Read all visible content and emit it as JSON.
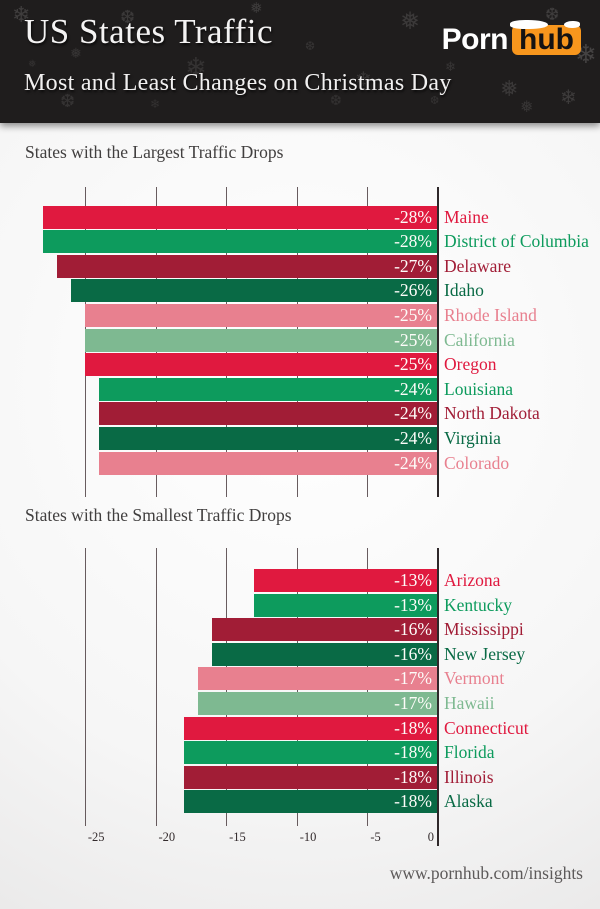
{
  "header": {
    "title": "US States Traffic",
    "subtitle": "Most and Least Changes on Christmas Day",
    "logo": {
      "part1": "Porn",
      "part2": "hub",
      "box_color": "#f7961d"
    },
    "background_color": "#1f1d1d",
    "snowflake_glyphs": [
      "❄",
      "❅",
      "❆"
    ]
  },
  "palette": {
    "crimson": "#e0193f",
    "emerald": "#0d9b5d",
    "maroon": "#a11d36",
    "dark_green": "#096a45",
    "rose": "#e8808f",
    "sage": "#7eb991"
  },
  "axis": {
    "tick_labels": [
      "-25",
      "-20",
      "-15",
      "-10",
      "-5",
      "0"
    ],
    "tick_values": [
      -25,
      -20,
      -15,
      -10,
      -5,
      0
    ],
    "line_color": "#45393b"
  },
  "chart_data": [
    {
      "type": "bar",
      "orientation": "horizontal",
      "title": "States with the Largest Traffic Drops",
      "unit": "percent change",
      "xlim": [
        -28,
        0
      ],
      "grid": true,
      "bars": [
        {
          "state": "Maine",
          "value": -28,
          "label": "-28%",
          "color": "#e0193f"
        },
        {
          "state": "District of Columbia",
          "value": -28,
          "label": "-28%",
          "color": "#0d9b5d"
        },
        {
          "state": "Delaware",
          "value": -27,
          "label": "-27%",
          "color": "#a11d36"
        },
        {
          "state": "Idaho",
          "value": -26,
          "label": "-26%",
          "color": "#096a45"
        },
        {
          "state": "Rhode Island",
          "value": -25,
          "label": "-25%",
          "color": "#e8808f"
        },
        {
          "state": "California",
          "value": -25,
          "label": "-25%",
          "color": "#7eb991"
        },
        {
          "state": "Oregon",
          "value": -25,
          "label": "-25%",
          "color": "#e0193f"
        },
        {
          "state": "Louisiana",
          "value": -24,
          "label": "-24%",
          "color": "#0d9b5d"
        },
        {
          "state": "North Dakota",
          "value": -24,
          "label": "-24%",
          "color": "#a11d36"
        },
        {
          "state": "Virginia",
          "value": -24,
          "label": "-24%",
          "color": "#096a45"
        },
        {
          "state": "Colorado",
          "value": -24,
          "label": "-24%",
          "color": "#e8808f"
        }
      ]
    },
    {
      "type": "bar",
      "orientation": "horizontal",
      "title": "States with the Smallest Traffic Drops",
      "unit": "percent change",
      "xlim": [
        -28,
        0
      ],
      "grid": true,
      "bars": [
        {
          "state": "Arizona",
          "value": -13,
          "label": "-13%",
          "color": "#e0193f"
        },
        {
          "state": "Kentucky",
          "value": -13,
          "label": "-13%",
          "color": "#0d9b5d"
        },
        {
          "state": "Mississippi",
          "value": -16,
          "label": "-16%",
          "color": "#a11d36"
        },
        {
          "state": "New Jersey",
          "value": -16,
          "label": "-16%",
          "color": "#096a45"
        },
        {
          "state": "Vermont",
          "value": -17,
          "label": "-17%",
          "color": "#e8808f"
        },
        {
          "state": "Hawaii",
          "value": -17,
          "label": "-17%",
          "color": "#7eb991"
        },
        {
          "state": "Connecticut",
          "value": -18,
          "label": "-18%",
          "color": "#e0193f"
        },
        {
          "state": "Florida",
          "value": -18,
          "label": "-18%",
          "color": "#0d9b5d"
        },
        {
          "state": "Illinois",
          "value": -18,
          "label": "-18%",
          "color": "#a11d36"
        },
        {
          "state": "Alaska",
          "value": -18,
          "label": "-18%",
          "color": "#096a45"
        }
      ]
    }
  ],
  "footer": {
    "url": "www.pornhub.com/insights"
  }
}
